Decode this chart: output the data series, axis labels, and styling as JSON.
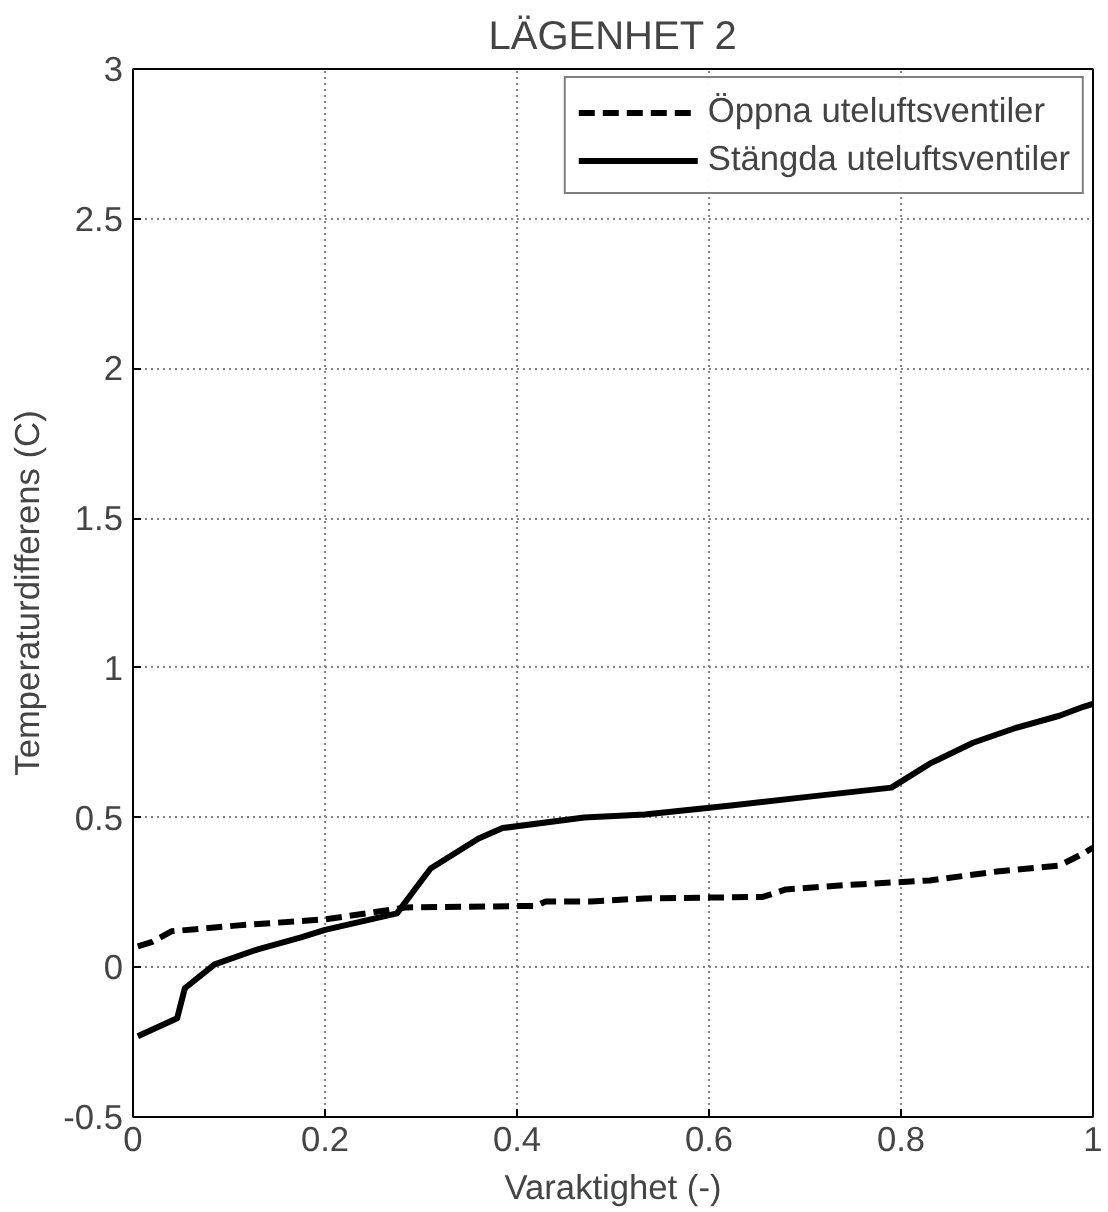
{
  "chart_data": {
    "type": "line",
    "title": "LÄGENHET 2",
    "xlabel": "Varaktighet (-)",
    "ylabel": "Temperaturdifferens (C)",
    "xlim": [
      0,
      1
    ],
    "ylim": [
      -0.5,
      3
    ],
    "xticks": [
      0,
      0.2,
      0.4,
      0.6,
      0.8,
      1
    ],
    "yticks": [
      -0.5,
      0,
      0.5,
      1,
      1.5,
      2,
      2.5,
      3
    ],
    "grid": true,
    "legend": "top right",
    "marker": "none",
    "series": [
      {
        "name": "Öppna uteluftsventiler",
        "color": "#000000",
        "line_style": "dashed",
        "x": [
          0.005,
          0.02,
          0.04,
          0.11,
          0.2,
          0.285,
          0.42,
          0.43,
          0.477,
          0.533,
          0.656,
          0.68,
          0.745,
          0.83,
          0.9,
          0.965,
          0.99,
          1.0
        ],
        "values": [
          0.07,
          0.085,
          0.12,
          0.14,
          0.16,
          0.2,
          0.205,
          0.22,
          0.22,
          0.23,
          0.235,
          0.26,
          0.275,
          0.29,
          0.32,
          0.34,
          0.38,
          0.4
        ]
      },
      {
        "name": "Stängda uteluftsventiler",
        "color": "#000000",
        "line_style": "solid",
        "x": [
          0.005,
          0.046,
          0.054,
          0.085,
          0.13,
          0.175,
          0.2,
          0.275,
          0.29,
          0.31,
          0.36,
          0.385,
          0.47,
          0.533,
          0.623,
          0.705,
          0.79,
          0.83,
          0.875,
          0.92,
          0.965,
          0.99,
          1.0
        ],
        "values": [
          -0.23,
          -0.17,
          -0.07,
          0.01,
          0.06,
          0.1,
          0.125,
          0.18,
          0.245,
          0.33,
          0.43,
          0.465,
          0.5,
          0.51,
          0.54,
          0.57,
          0.6,
          0.68,
          0.75,
          0.8,
          0.84,
          0.87,
          0.88
        ]
      }
    ]
  }
}
